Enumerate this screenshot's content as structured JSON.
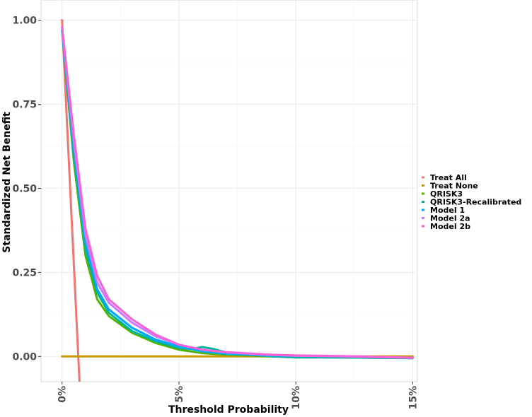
{
  "chart_data": {
    "type": "line",
    "xlabel": "Threshold Probability",
    "ylabel": "Standardized Net Benefit",
    "xlim": [
      -0.009,
      0.152
    ],
    "ylim": [
      -0.075,
      1.06
    ],
    "x_ticks": [
      0,
      0.05,
      0.1,
      0.15
    ],
    "x_tick_labels": [
      "0%",
      "5%",
      "10%",
      "15%"
    ],
    "y_ticks": [
      0,
      0.25,
      0.5,
      0.75,
      1.0
    ],
    "y_tick_labels": [
      "0.00",
      "0.25",
      "0.50",
      "0.75",
      "1.00"
    ],
    "grid": true,
    "legend_position": "right",
    "series": [
      {
        "name": "Treat All",
        "color": "#f07470",
        "x": [
          0,
          0.0075
        ],
        "y": [
          1.0,
          -0.08
        ]
      },
      {
        "name": "Treat None",
        "color": "#c49a00",
        "x": [
          0,
          0.15
        ],
        "y": [
          0,
          0
        ]
      },
      {
        "name": "QRISK3",
        "color": "#53b400",
        "x": [
          0,
          0.005,
          0.01,
          0.015,
          0.02,
          0.03,
          0.04,
          0.05,
          0.06,
          0.07,
          0.08,
          0.09,
          0.1,
          0.12,
          0.15
        ],
        "y": [
          0.97,
          0.58,
          0.3,
          0.17,
          0.12,
          0.07,
          0.04,
          0.02,
          0.01,
          0.005,
          0.003,
          0.0,
          -0.002,
          -0.003,
          -0.005
        ]
      },
      {
        "name": "QRISK3-Recalibrated",
        "color": "#00b69b",
        "x": [
          0,
          0.005,
          0.01,
          0.015,
          0.02,
          0.03,
          0.04,
          0.05,
          0.055,
          0.06,
          0.065,
          0.07,
          0.08,
          0.09,
          0.1,
          0.12,
          0.15
        ],
        "y": [
          0.97,
          0.6,
          0.32,
          0.19,
          0.13,
          0.075,
          0.045,
          0.025,
          0.022,
          0.028,
          0.022,
          0.012,
          0.005,
          0.0,
          -0.003,
          -0.003,
          -0.005
        ]
      },
      {
        "name": "Model 1",
        "color": "#00a9ff",
        "x": [
          0,
          0.005,
          0.01,
          0.015,
          0.02,
          0.03,
          0.04,
          0.05,
          0.06,
          0.07,
          0.08,
          0.09,
          0.1,
          0.12,
          0.15
        ],
        "y": [
          0.97,
          0.62,
          0.34,
          0.2,
          0.14,
          0.085,
          0.05,
          0.03,
          0.015,
          0.008,
          0.005,
          0.003,
          0.002,
          0.0,
          -0.004
        ]
      },
      {
        "name": "Model 2a",
        "color": "#c77cff",
        "x": [
          0,
          0.005,
          0.01,
          0.015,
          0.02,
          0.03,
          0.04,
          0.05,
          0.06,
          0.07,
          0.08,
          0.09,
          0.1,
          0.12,
          0.15
        ],
        "y": [
          0.98,
          0.64,
          0.36,
          0.22,
          0.16,
          0.1,
          0.06,
          0.035,
          0.02,
          0.012,
          0.008,
          0.004,
          0.002,
          0.0,
          -0.004
        ]
      },
      {
        "name": "Model 2b",
        "color": "#fb61d7",
        "x": [
          0,
          0.005,
          0.01,
          0.015,
          0.02,
          0.03,
          0.04,
          0.05,
          0.06,
          0.07,
          0.08,
          0.09,
          0.1,
          0.12,
          0.15
        ],
        "y": [
          0.98,
          0.66,
          0.38,
          0.24,
          0.17,
          0.11,
          0.065,
          0.035,
          0.02,
          0.013,
          0.009,
          0.005,
          0.003,
          0.001,
          -0.004
        ]
      }
    ]
  }
}
